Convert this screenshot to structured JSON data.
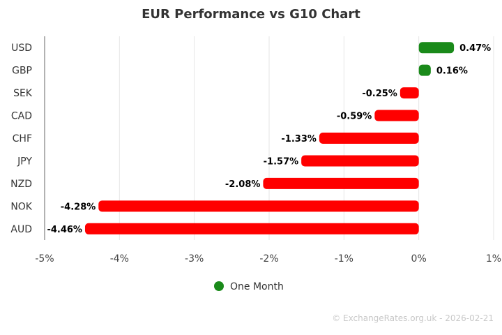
{
  "chart_data": {
    "type": "bar",
    "orientation": "horizontal",
    "title": "EUR Performance vs G10 Chart",
    "categories": [
      "USD",
      "GBP",
      "SEK",
      "CAD",
      "CHF",
      "JPY",
      "NZD",
      "NOK",
      "AUD"
    ],
    "series": [
      {
        "name": "One Month",
        "values": [
          0.47,
          0.16,
          -0.25,
          -0.59,
          -1.33,
          -1.57,
          -2.08,
          -4.28,
          -4.46
        ],
        "data_labels": [
          "0.47%",
          "0.16%",
          "-0.25%",
          "-0.59%",
          "-1.33%",
          "-1.57%",
          "-2.08%",
          "-4.28%",
          "-4.46%"
        ]
      }
    ],
    "xlim": [
      -5,
      1
    ],
    "x_ticks": [
      -5,
      -4,
      -3,
      -2,
      -1,
      0,
      1
    ],
    "x_tick_labels": [
      "-5%",
      "-4%",
      "-3%",
      "-2%",
      "-1%",
      "0%",
      "1%"
    ],
    "xlabel": "",
    "ylabel": "",
    "grid": true,
    "legend_position": "bottom-center",
    "colors": {
      "positive": "#1a8a1a",
      "negative": "#ff0000",
      "legend_marker": "#1a8a1a"
    }
  },
  "credit": "© ExchangeRates.org.uk - 2026-02-21"
}
